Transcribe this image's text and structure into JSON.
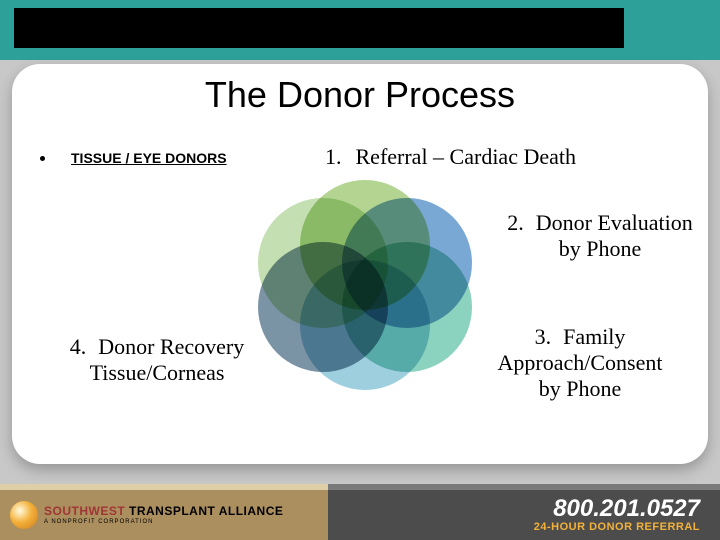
{
  "title": "The Donor Process",
  "subtitle": "TISSUE / EYE DONORS",
  "steps": {
    "one": {
      "num": "1.",
      "text": "Referral – Cardiac Death"
    },
    "two": {
      "num": "2.",
      "text": "Donor Evaluation\nby Phone"
    },
    "three": {
      "num": "3.",
      "text": "Family\nApproach/Consent\nby Phone"
    },
    "four": {
      "num": "4.",
      "text": "Donor Recovery\nTissue/Corneas"
    }
  },
  "venn_colors": [
    "#8fc15c",
    "#3b7fbf",
    "#54bca0",
    "#6eb8d0",
    "#3a5f7a",
    "#a8d08d"
  ],
  "footer": {
    "brand_left": "SOUTHWEST",
    "brand_right": " TRANSPLANT ALLIANCE",
    "brand_sub": "A NONPROFIT CORPORATION",
    "phone": "800.201.0527",
    "tagline": "24-HOUR DONOR REFERRAL"
  },
  "colors": {
    "header": "#2da09a",
    "footer_left": "#ac8f5f",
    "footer_right": "#4c4c4c",
    "accent": "#f3b13a"
  }
}
